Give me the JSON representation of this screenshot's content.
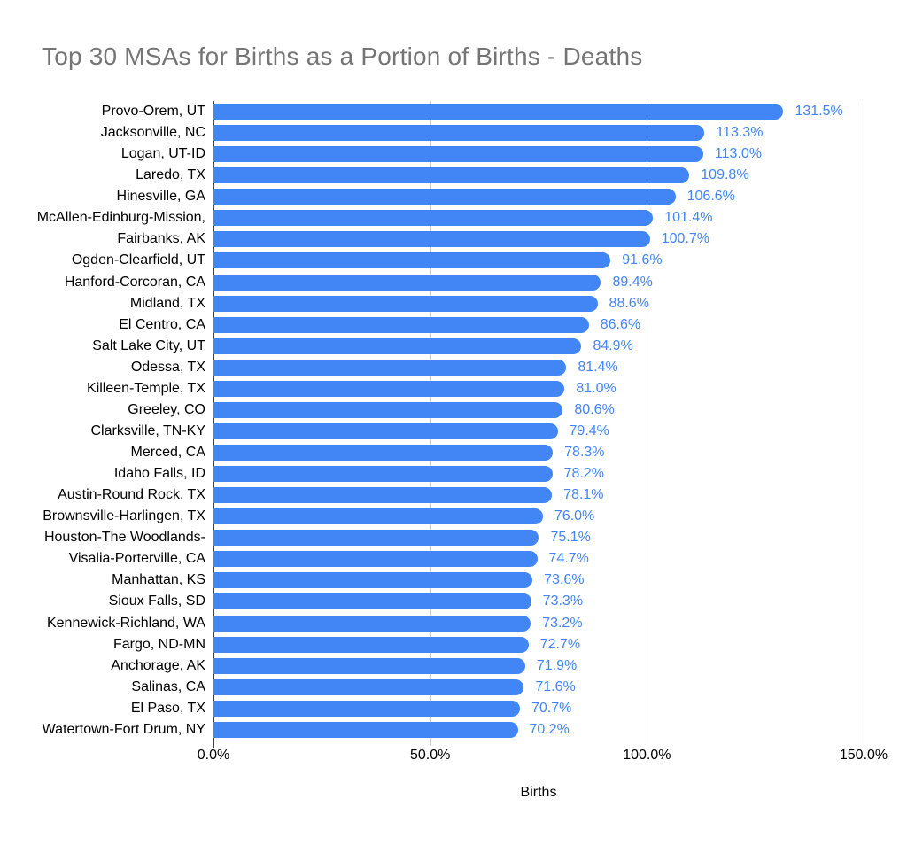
{
  "chart_data": {
    "type": "bar",
    "orientation": "horizontal",
    "title": "Top 30 MSAs for Births as a Portion of Births - Deaths",
    "xlabel": "Births",
    "ylabel": "",
    "value_suffix": "%",
    "xlim": [
      0,
      150
    ],
    "grid": true,
    "legend": "none",
    "x_tick_labels": [
      "0.0%",
      "50.0%",
      "100.0%",
      "150.0%"
    ],
    "x_tick_values": [
      0,
      50,
      100,
      150
    ],
    "categories": [
      "Provo-Orem, UT",
      "Jacksonville, NC",
      "Logan, UT-ID",
      "Laredo, TX",
      "Hinesville, GA",
      "McAllen-Edinburg-Mission,",
      "Fairbanks, AK",
      "Ogden-Clearfield, UT",
      "Hanford-Corcoran, CA",
      "Midland, TX",
      "El Centro, CA",
      "Salt Lake City, UT",
      "Odessa, TX",
      "Killeen-Temple, TX",
      "Greeley, CO",
      "Clarksville, TN-KY",
      "Merced, CA",
      "Idaho Falls, ID",
      "Austin-Round Rock, TX",
      "Brownsville-Harlingen, TX",
      "Houston-The Woodlands-",
      "Visalia-Porterville, CA",
      "Manhattan, KS",
      "Sioux Falls, SD",
      "Kennewick-Richland, WA",
      "Fargo, ND-MN",
      "Anchorage, AK",
      "Salinas, CA",
      "El Paso, TX",
      "Watertown-Fort Drum, NY"
    ],
    "values": [
      131.5,
      113.3,
      113.0,
      109.8,
      106.6,
      101.4,
      100.7,
      91.6,
      89.4,
      88.6,
      86.6,
      84.9,
      81.4,
      81.0,
      80.6,
      79.4,
      78.3,
      78.2,
      78.1,
      76.0,
      75.1,
      74.7,
      73.6,
      73.3,
      73.2,
      72.7,
      71.9,
      71.6,
      70.7,
      70.2
    ],
    "value_labels": [
      "131.5%",
      "113.3%",
      "113.0%",
      "109.8%",
      "106.6%",
      "101.4%",
      "100.7%",
      "91.6%",
      "89.4%",
      "88.6%",
      "86.6%",
      "84.9%",
      "81.4%",
      "81.0%",
      "80.6%",
      "79.4%",
      "78.3%",
      "78.2%",
      "78.1%",
      "76.0%",
      "75.1%",
      "74.7%",
      "73.6%",
      "73.3%",
      "73.2%",
      "72.7%",
      "71.9%",
      "71.6%",
      "70.7%",
      "70.2%"
    ],
    "colors": {
      "bar": "#4285f4",
      "value_label": "#4285f4",
      "title": "#757575",
      "axis_text": "#000000",
      "grid_line": "#cccccc",
      "axis_line": "#424242",
      "background": "#ffffff"
    }
  }
}
